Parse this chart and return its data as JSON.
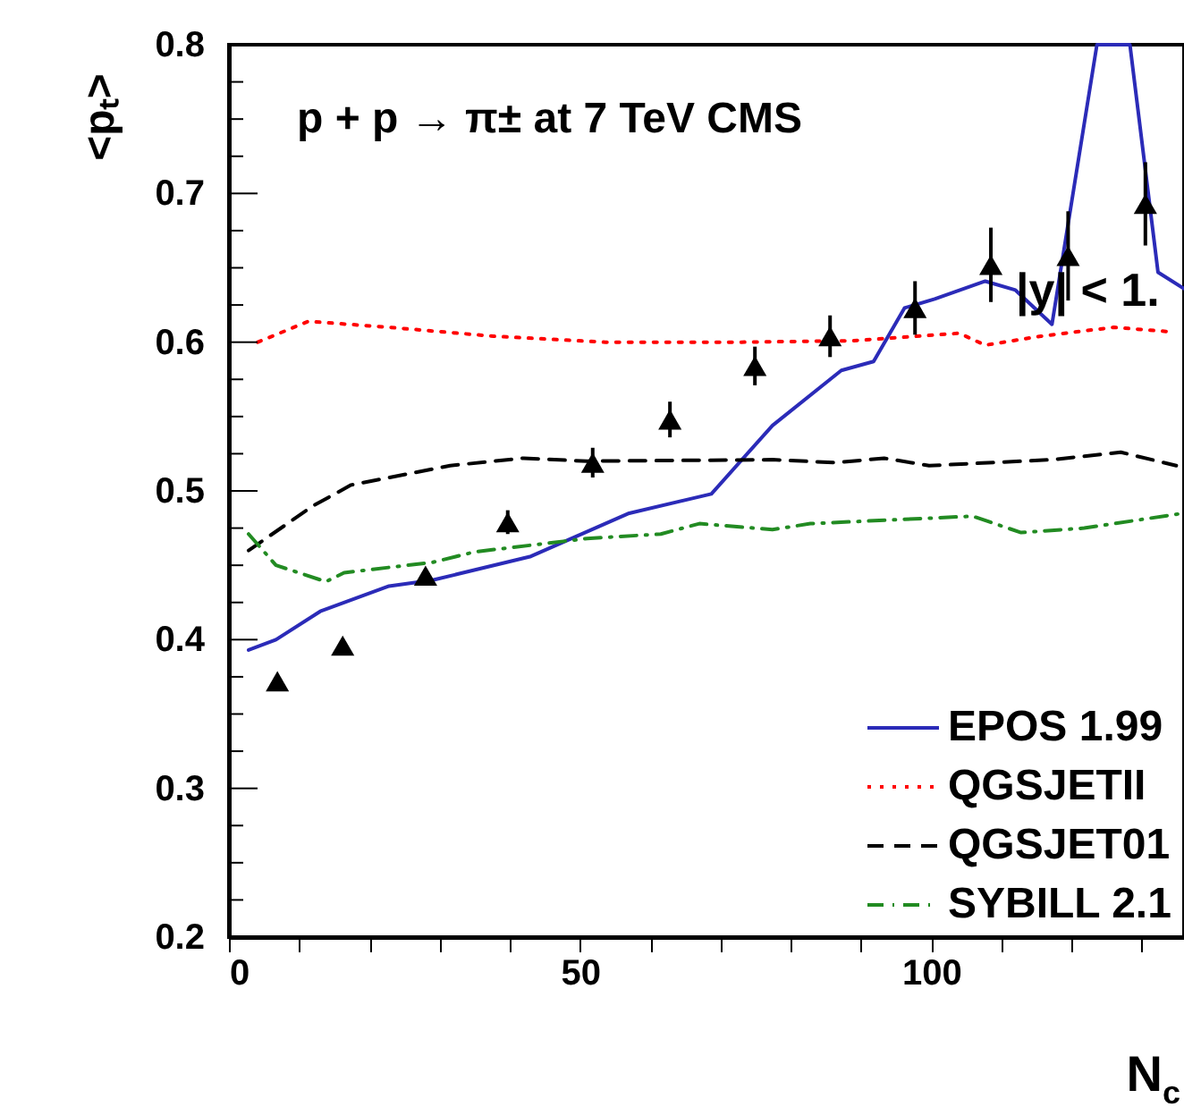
{
  "chart_data": {
    "type": "line",
    "xlabel": "N$_{c}$",
    "ylabel": "<pₜ>",
    "annotations": [
      "p + p → π± at 7 TeV CMS",
      "|y| < 1."
    ],
    "xlim": [
      0,
      136
    ],
    "ylim": [
      0.2,
      0.8
    ],
    "xticks": [
      0,
      {
        "value": 10,
        "label": null
      },
      {
        "value": 20,
        "label": null
      },
      {
        "value": 30,
        "label": null
      },
      {
        "value": 40,
        "label": null
      },
      50,
      {
        "value": 60,
        "label": null
      },
      {
        "value": 70,
        "label": null
      },
      {
        "value": 80,
        "label": null
      },
      {
        "value": 90,
        "label": null
      },
      100,
      {
        "value": 110,
        "label": null
      },
      {
        "value": 120,
        "label": null
      },
      {
        "value": 130,
        "label": null
      }
    ],
    "yticks": [
      0.2,
      {
        "value": 0.225,
        "label": null
      },
      {
        "value": 0.25,
        "label": null
      },
      {
        "value": 0.275,
        "label": null
      },
      0.3,
      {
        "value": 0.325,
        "label": null
      },
      {
        "value": 0.35,
        "label": null
      },
      {
        "value": 0.375,
        "label": null
      },
      0.4,
      {
        "value": 0.425,
        "label": null
      },
      {
        "value": 0.45,
        "label": null
      },
      {
        "value": 0.475,
        "label": null
      },
      0.5,
      {
        "value": 0.525,
        "label": null
      },
      {
        "value": 0.55,
        "label": null
      },
      {
        "value": 0.575,
        "label": null
      },
      0.6,
      {
        "value": 0.625,
        "label": null
      },
      {
        "value": 0.65,
        "label": null
      },
      {
        "value": 0.675,
        "label": null
      },
      0.7,
      {
        "value": 0.725,
        "label": null
      },
      {
        "value": 0.75,
        "label": null
      },
      {
        "value": 0.775,
        "label": null
      },
      0.8
    ],
    "grid": false,
    "legend": "bottom right",
    "series": [
      {
        "name": "EPOS 1.99",
        "color": "#2b2bb8",
        "line_style": "solid",
        "x": [
          2.8,
          6.7,
          13,
          22.8,
          29,
          43,
          57,
          68.7,
          77.4,
          87.2,
          91.8,
          96.2,
          100.5,
          107.7,
          112,
          117.2,
          123.6,
          128.3,
          132.3,
          136
        ],
        "values": [
          0.393,
          0.4,
          0.419,
          0.436,
          0.44,
          0.456,
          0.485,
          0.498,
          0.544,
          0.581,
          0.587,
          0.623,
          0.629,
          0.641,
          0.635,
          0.612,
          0.8,
          0.8,
          0.647,
          0.636
        ]
      },
      {
        "name": "QGSJETII",
        "color": "#ff0000",
        "line_style": "dotted",
        "x": [
          4.1,
          11.3,
          22.8,
          37.7,
          53.6,
          73,
          89,
          104,
          107.7,
          115.6,
          126,
          134
        ],
        "values": [
          0.6,
          0.614,
          0.61,
          0.604,
          0.6,
          0.6,
          0.601,
          0.606,
          0.598,
          0.604,
          0.61,
          0.607
        ]
      },
      {
        "name": "QGSJET01",
        "color": "#000000",
        "line_style": "dashed",
        "x": [
          2.8,
          12,
          17.4,
          31.5,
          42,
          51,
          77.4,
          86.4,
          93.3,
          99.7,
          117.2,
          127,
          134.9
        ],
        "values": [
          0.46,
          0.49,
          0.504,
          0.517,
          0.522,
          0.52,
          0.521,
          0.519,
          0.522,
          0.517,
          0.521,
          0.526,
          0.517
        ]
      },
      {
        "name": "SYBILL 2.1",
        "color": "#228b22",
        "line_style": "dashdot",
        "x": [
          2.8,
          6.7,
          13.8,
          16.4,
          29,
          35,
          51,
          61.5,
          67,
          77.4,
          82.8,
          105.9,
          112.8,
          121.8,
          135.9
        ],
        "values": [
          0.471,
          0.45,
          0.439,
          0.445,
          0.452,
          0.459,
          0.468,
          0.471,
          0.478,
          0.474,
          0.478,
          0.483,
          0.472,
          0.475,
          0.485
        ]
      },
      {
        "type": "scatter",
        "color": "#000000",
        "marker": "triangle",
        "x": [
          6.9,
          16.2,
          28,
          39.7,
          51.8,
          62.8,
          74.9,
          85.6,
          97.7,
          108.5,
          119.5,
          130.5
        ],
        "values": [
          0.372,
          0.396,
          0.443,
          0.479,
          0.519,
          0.548,
          0.584,
          0.604,
          0.623,
          0.652,
          0.658,
          0.693
        ],
        "errors": [
          null,
          null,
          null,
          0.008,
          0.01,
          0.012,
          0.013,
          0.014,
          0.018,
          0.025,
          0.03,
          0.028
        ]
      }
    ]
  }
}
